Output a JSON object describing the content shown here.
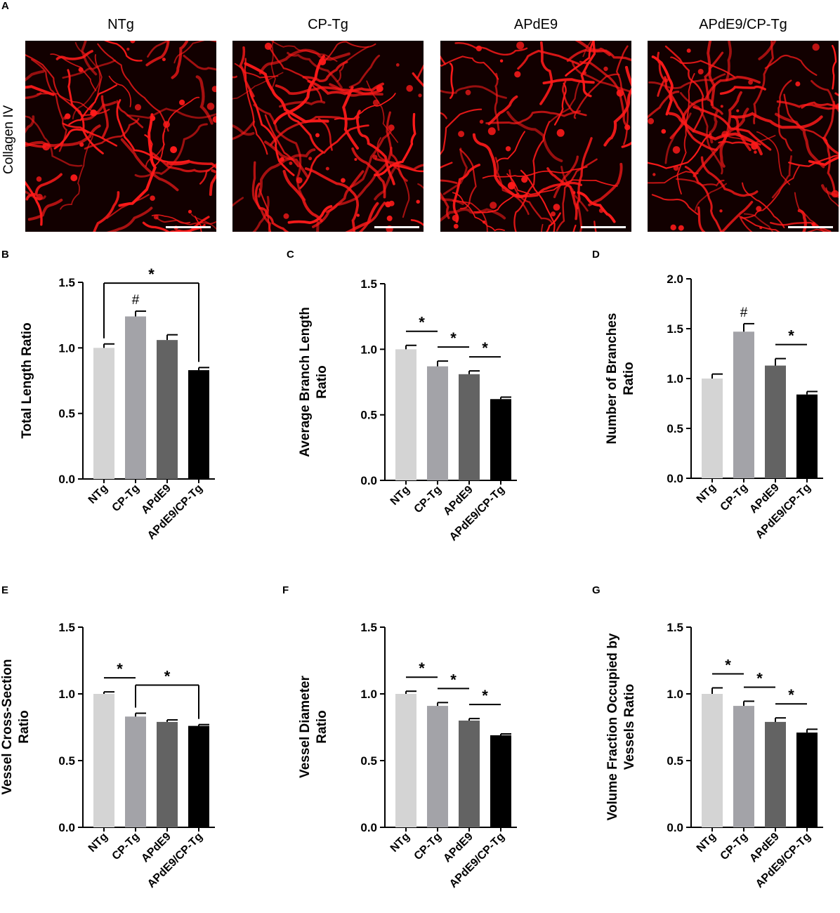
{
  "figure": {
    "panel_letters": {
      "a": "A",
      "b": "B",
      "c": "C",
      "d": "D",
      "e": "E",
      "f": "F",
      "g": "G"
    },
    "row_label": "Collagen IV",
    "groups": [
      "NTg",
      "CP-Tg",
      "APdE9",
      "APdE9/CP-Tg"
    ],
    "bar_colors": [
      "#d4d4d4",
      "#a3a3a8",
      "#636363",
      "#000000"
    ],
    "micrograph_color": "#ff1a1a"
  },
  "chart_data": [
    {
      "type": "bar",
      "panel": "B",
      "ylabel": [
        "Total Length Ratio"
      ],
      "categories": [
        "NTg",
        "CP-Tg",
        "APdE9",
        "APdE9/CP-Tg"
      ],
      "values": [
        1.0,
        1.24,
        1.06,
        0.83
      ],
      "errors": [
        0.03,
        0.04,
        0.04,
        0.02
      ],
      "ylim": [
        0,
        1.5
      ],
      "yticks": [
        "0.0",
        "0.5",
        "1.0",
        "1.5"
      ],
      "significance": [
        {
          "from": 0,
          "to": 3,
          "label": "*",
          "style": "bracket"
        },
        {
          "at": 1,
          "label": "#"
        }
      ]
    },
    {
      "type": "bar",
      "panel": "C",
      "ylabel": [
        "Average Branch Length",
        "Ratio"
      ],
      "categories": [
        "NTg",
        "CP-Tg",
        "APdE9",
        "APdE9/CP-Tg"
      ],
      "values": [
        1.0,
        0.87,
        0.81,
        0.62
      ],
      "errors": [
        0.03,
        0.04,
        0.025,
        0.015
      ],
      "ylim": [
        0,
        1.5
      ],
      "yticks": [
        "0.0",
        "0.5",
        "1.0",
        "1.5"
      ],
      "significance": [
        {
          "from": 0,
          "to": 1,
          "label": "*",
          "style": "line"
        },
        {
          "from": 1,
          "to": 2,
          "label": "*",
          "style": "line"
        },
        {
          "from": 2,
          "to": 3,
          "label": "*",
          "style": "line"
        }
      ]
    },
    {
      "type": "bar",
      "panel": "D",
      "ylabel": [
        "Number of Branches",
        "Ratio"
      ],
      "categories": [
        "NTg",
        "CP-Tg",
        "APdE9",
        "APdE9/CP-Tg"
      ],
      "values": [
        1.0,
        1.47,
        1.13,
        0.84
      ],
      "errors": [
        0.045,
        0.08,
        0.07,
        0.03
      ],
      "ylim": [
        0,
        2.0
      ],
      "yticks": [
        "0.0",
        "0.5",
        "1.0",
        "1.5",
        "2.0"
      ],
      "significance": [
        {
          "from": 2,
          "to": 3,
          "label": "*",
          "style": "line"
        },
        {
          "at": 1,
          "label": "#"
        }
      ]
    },
    {
      "type": "bar",
      "panel": "E",
      "ylabel": [
        "Vessel Cross-Section",
        "Ratio"
      ],
      "categories": [
        "NTg",
        "CP-Tg",
        "APdE9",
        "APdE9/CP-Tg"
      ],
      "values": [
        1.0,
        0.83,
        0.79,
        0.76
      ],
      "errors": [
        0.015,
        0.025,
        0.015,
        0.01
      ],
      "ylim": [
        0,
        1.5
      ],
      "yticks": [
        "0.0",
        "0.5",
        "1.0",
        "1.5"
      ],
      "significance": [
        {
          "from": 0,
          "to": 1,
          "label": "*",
          "style": "line"
        },
        {
          "from": 1,
          "to": 3,
          "label": "*",
          "style": "bracket"
        }
      ]
    },
    {
      "type": "bar",
      "panel": "F",
      "ylabel": [
        "Vessel Diameter",
        "Ratio"
      ],
      "categories": [
        "NTg",
        "CP-Tg",
        "APdE9",
        "APdE9/CP-Tg"
      ],
      "values": [
        1.0,
        0.91,
        0.8,
        0.69
      ],
      "errors": [
        0.02,
        0.025,
        0.015,
        0.01
      ],
      "ylim": [
        0,
        1.5
      ],
      "yticks": [
        "0.0",
        "0.5",
        "1.0",
        "1.5"
      ],
      "significance": [
        {
          "from": 0,
          "to": 1,
          "label": "*",
          "style": "line"
        },
        {
          "from": 1,
          "to": 2,
          "label": "*",
          "style": "line"
        },
        {
          "from": 2,
          "to": 3,
          "label": "*",
          "style": "line"
        }
      ]
    },
    {
      "type": "bar",
      "panel": "G",
      "ylabel": [
        "Volume Fraction Occupied by",
        "Vessels Ratio"
      ],
      "categories": [
        "NTg",
        "CP-Tg",
        "APdE9",
        "APdE9/CP-Tg"
      ],
      "values": [
        1.0,
        0.91,
        0.79,
        0.71
      ],
      "errors": [
        0.045,
        0.035,
        0.03,
        0.025
      ],
      "ylim": [
        0,
        1.5
      ],
      "yticks": [
        "0.0",
        "0.5",
        "1.0",
        "1.5"
      ],
      "significance": [
        {
          "from": 0,
          "to": 1,
          "label": "*",
          "style": "line"
        },
        {
          "from": 1,
          "to": 2,
          "label": "*",
          "style": "line"
        },
        {
          "from": 2,
          "to": 3,
          "label": "*",
          "style": "line"
        }
      ]
    }
  ]
}
